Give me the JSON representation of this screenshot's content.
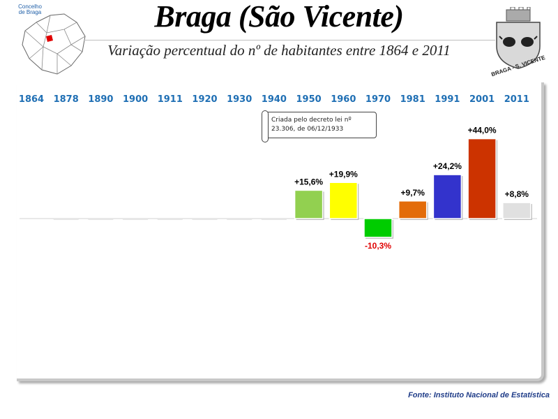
{
  "header": {
    "title": "Braga (São Vicente)",
    "subtitle": "Variação percentual do nº de habitantes entre 1864 e 2011",
    "map_label": "Concelho de Braga",
    "crest_label": "BRAGA - S. VICENTE"
  },
  "note": "Criada pelo decreto lei nº 23.306, de 06/12/1933",
  "source": "Fonte: Instituto Nacional de Estatística",
  "chart_data": {
    "type": "bar",
    "categories": [
      "1864",
      "1878",
      "1890",
      "1900",
      "1911",
      "1920",
      "1930",
      "1940",
      "1950",
      "1960",
      "1970",
      "1981",
      "1991",
      "2001",
      "2011"
    ],
    "values": [
      null,
      null,
      null,
      null,
      null,
      null,
      null,
      null,
      15.6,
      19.9,
      -10.3,
      9.7,
      24.2,
      44.0,
      8.8
    ],
    "labels": [
      "",
      "",
      "",
      "",
      "",
      "",
      "",
      "",
      "+15,6%",
      "+19,9%",
      "-10,3%",
      "+9,7%",
      "+24,2%",
      "+44,0%",
      "+8,8%"
    ],
    "colors": [
      "",
      "",
      "",
      "",
      "",
      "",
      "",
      "",
      "#92d050",
      "#ffff00",
      "#00cc00",
      "#e36c0a",
      "#3333cc",
      "#cc3300",
      "#e0e0e0"
    ],
    "negative_label_color": "#e00000",
    "positive_label_color": "#000000"
  }
}
